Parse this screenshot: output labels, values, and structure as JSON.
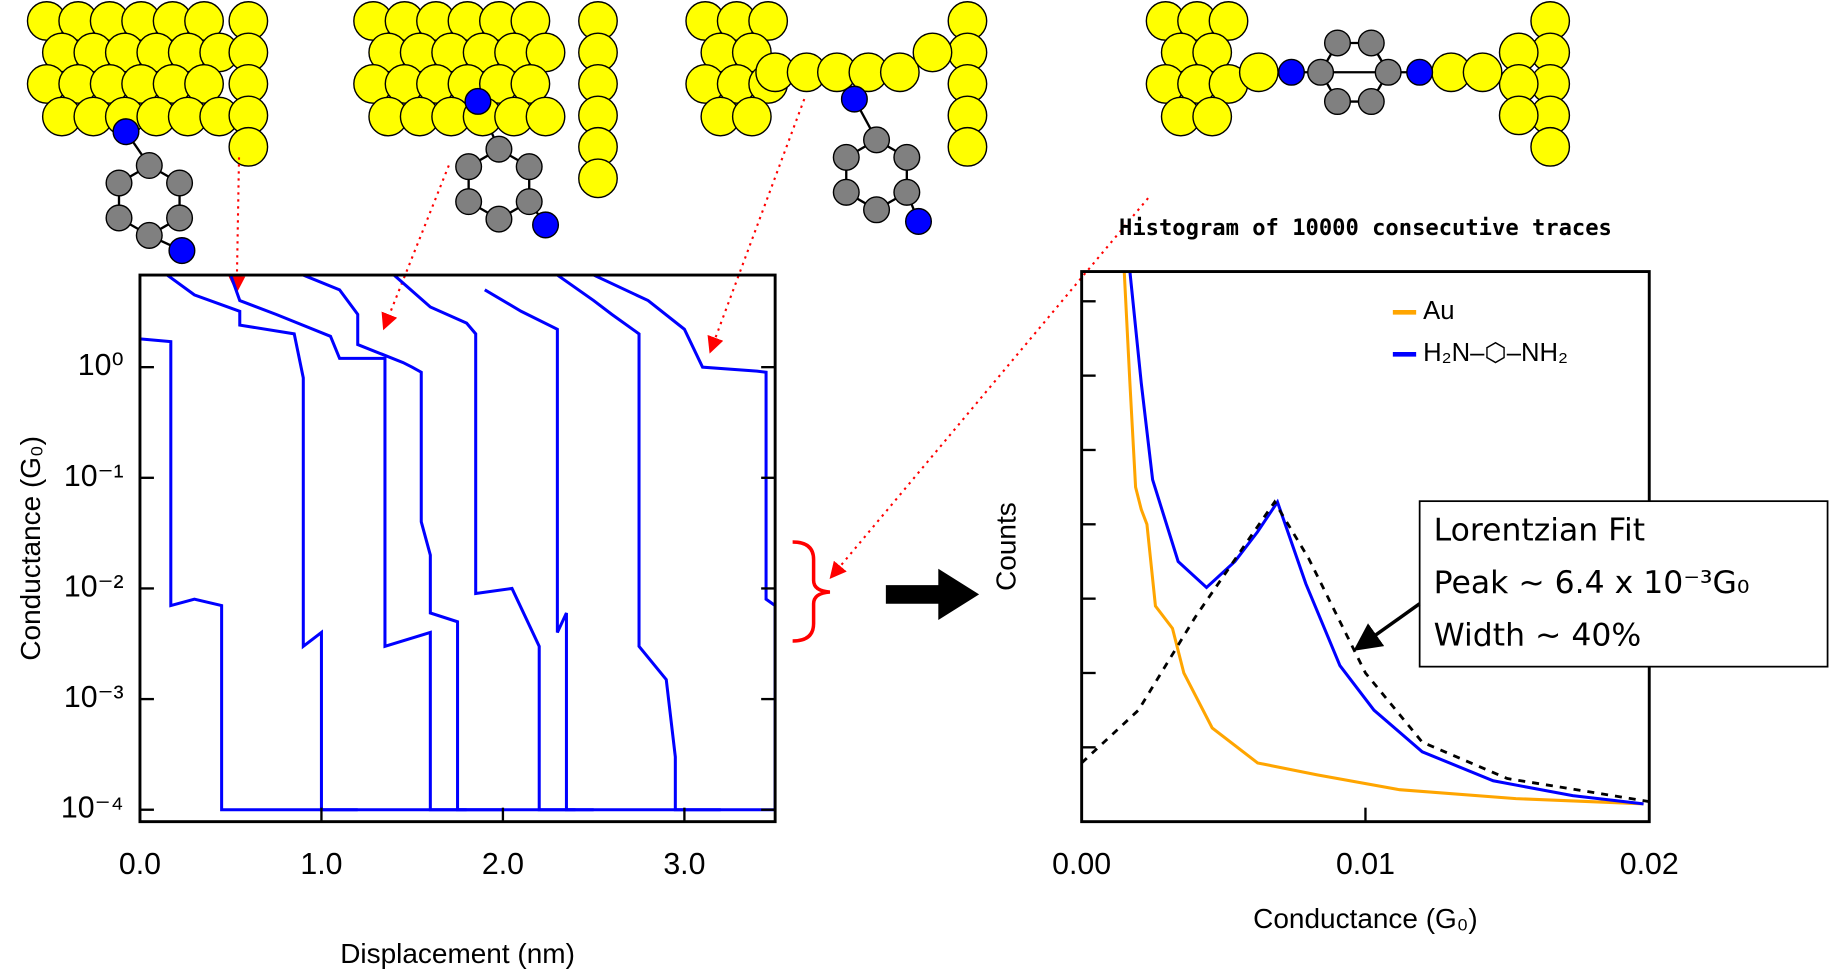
{
  "chart_data": [
    {
      "type": "line",
      "xlabel": "Displacement (nm)",
      "ylabel": "Conductance (G₀)",
      "xlim": [
        0,
        3.5
      ],
      "xticks": [
        {
          "value": 0,
          "label": "0.0"
        },
        {
          "value": 1,
          "label": "1.0"
        },
        {
          "value": 2,
          "label": "2.0"
        },
        {
          "value": 3,
          "label": "3.0"
        }
      ],
      "ylim": [
        7.8e-05,
        6.8
      ],
      "ylog": true,
      "mirror_yticks": true,
      "grid": false,
      "yticks": [
        {
          "value": 0.0001,
          "label": "10⁻⁴"
        },
        {
          "value": 0.001,
          "label": "10⁻³"
        },
        {
          "value": 0.01,
          "label": "10⁻²"
        },
        {
          "value": 0.1,
          "label": "10⁻¹"
        },
        {
          "value": 1,
          "label": "10⁰"
        }
      ],
      "series": [
        {
          "color": "#0000ff",
          "x": [
            0,
            0.17,
            0.17,
            0.3,
            0.45,
            0.45,
            3.5
          ],
          "values": [
            1.8,
            1.7,
            0.007,
            0.008,
            0.007,
            0.0001,
            0.0001
          ]
        },
        {
          "color": "#0000ff",
          "x": [
            0.15,
            0.3,
            0.55,
            0.55,
            0.85,
            0.9,
            0.9,
            1.0,
            1.0,
            1.2
          ],
          "values": [
            6.8,
            4.5,
            3.2,
            2.4,
            2.0,
            0.8,
            0.003,
            0.004,
            0.0001,
            0.0001
          ]
        },
        {
          "color": "#0000ff",
          "x": [
            0.5,
            0.55,
            0.75,
            1.05,
            1.1,
            1.35,
            1.35,
            1.6,
            1.6,
            1.8
          ],
          "values": [
            6.8,
            4.0,
            3.0,
            1.9,
            1.2,
            1.2,
            0.003,
            0.004,
            0.0001,
            0.0001
          ]
        },
        {
          "color": "#0000ff",
          "x": [
            0.9,
            1.1,
            1.2,
            1.2,
            1.45,
            1.5,
            1.55,
            1.55,
            1.6,
            1.6,
            1.75,
            1.75,
            2.0
          ],
          "values": [
            6.8,
            5.0,
            3.0,
            1.6,
            1.1,
            1.0,
            0.9,
            0.04,
            0.02,
            0.006,
            0.005,
            0.0001,
            0.0001
          ]
        },
        {
          "color": "#0000ff",
          "x": [
            1.4,
            1.6,
            1.8,
            1.85,
            1.85,
            2.05,
            2.2,
            2.2,
            2.4
          ],
          "values": [
            6.8,
            3.5,
            2.5,
            2.0,
            0.009,
            0.01,
            0.003,
            0.0001,
            0.0001
          ]
        },
        {
          "color": "#0000ff",
          "x": [
            1.9,
            2.1,
            2.3,
            2.3,
            2.35,
            2.35,
            2.5
          ],
          "values": [
            5,
            3.2,
            2.2,
            0.004,
            0.006,
            0.0001,
            0.0001
          ]
        },
        {
          "color": "#0000ff",
          "x": [
            2.3,
            2.5,
            2.6,
            2.75,
            2.75,
            2.9,
            2.95,
            2.95,
            3.2
          ],
          "values": [
            6.8,
            4,
            3,
            2.0,
            0.003,
            0.0015,
            0.0003,
            0.0001,
            0.0001
          ]
        },
        {
          "color": "#0000ff",
          "x": [
            2.5,
            2.8,
            3.0,
            3.1,
            3.4,
            3.45,
            3.45,
            3.5,
            3.5
          ],
          "values": [
            6.8,
            4,
            2.2,
            1.0,
            0.92,
            0.9,
            0.008,
            0.007,
            0.0001
          ]
        }
      ]
    },
    {
      "type": "line",
      "title": "Histogram of 10000 consecutive traces",
      "xlabel": "Conductance (G₀)",
      "ylabel": "Counts",
      "xlim": [
        0,
        0.02
      ],
      "xticks": [
        {
          "value": 0,
          "label": "0.00"
        },
        0.01,
        0.02
      ],
      "ylim": [
        0,
        7.4
      ],
      "yticks": [
        1,
        2,
        3,
        4,
        5,
        6,
        7
      ],
      "ytick_labels": false,
      "grid": false,
      "legend": "upper right",
      "series": [
        {
          "name": "Au",
          "color": "#ffa500",
          "x": [
            0.0015,
            0.0017,
            0.0019,
            0.0021,
            0.0023,
            0.0026,
            0.0032,
            0.0036,
            0.0046,
            0.0062,
            0.0083,
            0.0112,
            0.0153,
            0.0198
          ],
          "values": [
            7.4,
            5.9,
            4.5,
            4.2,
            4.0,
            2.9,
            2.6,
            2.0,
            1.26,
            0.79,
            0.63,
            0.43,
            0.31,
            0.24
          ]
        },
        {
          "name": "H₂N–⬡–NH₂",
          "color": "#0000ff",
          "x": [
            0.0017,
            0.0021,
            0.0025,
            0.0034,
            0.0044,
            0.0054,
            0.0062,
            0.0069,
            0.0079,
            0.0091,
            0.0103,
            0.012,
            0.0145,
            0.0173,
            0.0198
          ],
          "values": [
            7.4,
            5.9,
            4.6,
            3.5,
            3.15,
            3.5,
            3.9,
            4.3,
            3.2,
            2.1,
            1.5,
            0.94,
            0.55,
            0.35,
            0.24
          ]
        },
        {
          "color": "#000000",
          "dash": true,
          "x": [
            0,
            0.002,
            0.004,
            0.006,
            0.0068,
            0.008,
            0.01,
            0.012,
            0.015,
            0.02
          ],
          "values": [
            0.79,
            1.5,
            2.75,
            3.86,
            4.3,
            3.54,
            2.0,
            1.07,
            0.58,
            0.27
          ]
        }
      ],
      "annotations": [
        "Lorentzian Fit",
        "Peak ~ 6.4 x 10⁻³G₀",
        "Width ~ 40%"
      ]
    }
  ]
}
